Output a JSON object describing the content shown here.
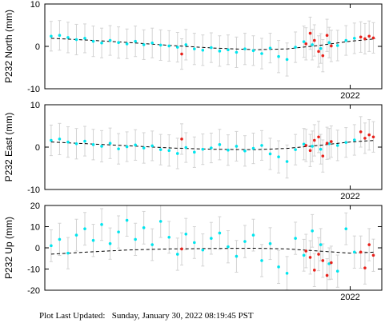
{
  "footer": {
    "label": "Plot Last Updated:",
    "value": "Sunday, January 30, 2022 08:19:45 PST"
  },
  "colors": {
    "final_points": "#00e5ee",
    "rapid_points": "#e8201a",
    "error_bars": "#d3d3d3",
    "trend_line": "#000000",
    "frame": "#000000"
  },
  "chart_data": [
    {
      "type": "scatter",
      "id": "north",
      "ylabel": "P232 North (mm)",
      "xlabel": "",
      "title": "",
      "ylim": [
        -10,
        10
      ],
      "yticks": [
        -10,
        0,
        10
      ],
      "xlim": [
        2020.55,
        2022.15
      ],
      "xticks": [
        {
          "value": 2022.0,
          "label": "2022"
        }
      ],
      "grid": false,
      "series": [
        {
          "kind": "final",
          "x": [
            2020.58,
            2020.62,
            2020.66,
            2020.7,
            2020.74,
            2020.78,
            2020.82,
            2020.86,
            2020.9,
            2020.94,
            2020.98,
            2021.02,
            2021.06,
            2021.1,
            2021.14,
            2021.18,
            2021.22,
            2021.26,
            2021.3,
            2021.34,
            2021.38,
            2021.42,
            2021.46,
            2021.5,
            2021.54,
            2021.58,
            2021.62,
            2021.66,
            2021.7,
            2021.74,
            2021.78,
            2021.82,
            2021.86,
            2021.9,
            2021.94,
            2021.98,
            2022.02
          ],
          "y": [
            2.4,
            2.6,
            2.1,
            1.6,
            1.9,
            1.2,
            0.8,
            1.4,
            0.9,
            0.6,
            1.2,
            0.4,
            0.8,
            0.3,
            0.1,
            -0.2,
            0.4,
            -0.6,
            -0.9,
            -0.3,
            -1.1,
            -0.8,
            -1.4,
            -0.6,
            -1.0,
            -1.7,
            -0.4,
            -2.4,
            -3.1,
            -0.2,
            1.1,
            0.4,
            -0.5,
            0.9,
            0.2,
            1.4,
            1.9
          ],
          "err": [
            3.5,
            3.5,
            3.6,
            3.6,
            3.4,
            3.6,
            3.5,
            3.5,
            3.7,
            3.5,
            3.6,
            3.5,
            3.5,
            3.6,
            3.6,
            3.5,
            3.6,
            3.7,
            3.6,
            3.5,
            3.6,
            3.5,
            3.6,
            3.7,
            3.5,
            3.6,
            3.5,
            3.8,
            3.9,
            3.6,
            3.7,
            3.6,
            3.5,
            3.6,
            3.6,
            3.5,
            3.6
          ]
        },
        {
          "kind": "rapid",
          "x": [
            2021.2,
            2021.79,
            2021.81,
            2021.83,
            2021.85,
            2021.87,
            2021.89,
            2021.91,
            2022.05,
            2022.07,
            2022.09,
            2022.11
          ],
          "y": [
            -1.8,
            0.6,
            3.1,
            1.4,
            -1.2,
            -2.2,
            2.6,
            0.1,
            2.2,
            1.8,
            2.4,
            2.0
          ],
          "err": [
            3.6,
            3.8,
            3.8,
            3.7,
            3.7,
            3.8,
            3.8,
            3.7,
            3.6,
            3.6,
            3.6,
            3.6
          ]
        },
        {
          "kind": "trend",
          "x": [
            2020.58,
            2020.75,
            2020.95,
            2021.15,
            2021.35,
            2021.55,
            2021.7,
            2021.85,
            2022.0,
            2022.12
          ],
          "y": [
            1.9,
            1.5,
            0.9,
            0.2,
            -0.4,
            -0.8,
            -0.6,
            0.2,
            1.2,
            1.8
          ]
        }
      ]
    },
    {
      "type": "scatter",
      "id": "east",
      "ylabel": "P232 East (mm)",
      "xlabel": "",
      "title": "",
      "ylim": [
        -10,
        10
      ],
      "yticks": [
        -10,
        0,
        10
      ],
      "xlim": [
        2020.55,
        2022.15
      ],
      "xticks": [
        {
          "value": 2022.0,
          "label": "2022"
        }
      ],
      "grid": false,
      "series": [
        {
          "kind": "final",
          "x": [
            2020.58,
            2020.62,
            2020.66,
            2020.7,
            2020.74,
            2020.78,
            2020.82,
            2020.86,
            2020.9,
            2020.94,
            2020.98,
            2021.02,
            2021.06,
            2021.1,
            2021.14,
            2021.18,
            2021.22,
            2021.26,
            2021.3,
            2021.34,
            2021.38,
            2021.42,
            2021.46,
            2021.5,
            2021.54,
            2021.58,
            2021.62,
            2021.66,
            2021.7,
            2021.74,
            2021.78,
            2021.82,
            2021.86,
            2021.9,
            2021.94,
            2021.98,
            2022.02
          ],
          "y": [
            1.6,
            1.9,
            1.2,
            0.8,
            1.4,
            0.6,
            0.2,
            0.9,
            -0.4,
            0.1,
            0.5,
            -0.2,
            0.3,
            -0.6,
            -0.8,
            -1.5,
            -0.1,
            -1.2,
            -0.5,
            -0.2,
            0.6,
            -0.7,
            0.2,
            -0.9,
            -0.3,
            0.4,
            -1.6,
            -2.3,
            -3.4,
            -0.6,
            0.7,
            0.2,
            -0.5,
            0.8,
            0.4,
            1.1,
            1.7
          ],
          "err": [
            3.6,
            3.7,
            3.6,
            3.6,
            3.5,
            3.6,
            3.7,
            3.6,
            3.6,
            3.5,
            3.6,
            3.6,
            3.5,
            3.6,
            3.7,
            3.6,
            3.5,
            3.6,
            3.6,
            3.5,
            3.6,
            3.6,
            3.5,
            3.6,
            3.6,
            3.5,
            3.7,
            3.8,
            3.9,
            3.6,
            3.7,
            3.6,
            3.5,
            3.6,
            3.6,
            3.5,
            3.6
          ]
        },
        {
          "kind": "rapid",
          "x": [
            2021.2,
            2021.79,
            2021.81,
            2021.83,
            2021.85,
            2021.87,
            2021.89,
            2021.91,
            2022.05,
            2022.07,
            2022.09,
            2022.11
          ],
          "y": [
            1.9,
            0.4,
            -0.8,
            1.6,
            2.4,
            -2.1,
            0.9,
            1.3,
            3.6,
            2.1,
            2.9,
            2.4
          ],
          "err": [
            3.6,
            3.8,
            3.8,
            3.7,
            3.7,
            3.8,
            3.8,
            3.7,
            3.6,
            3.6,
            3.6,
            3.6
          ]
        },
        {
          "kind": "trend",
          "x": [
            2020.58,
            2020.75,
            2020.95,
            2021.15,
            2021.35,
            2021.55,
            2021.7,
            2021.85,
            2022.0,
            2022.12
          ],
          "y": [
            1.2,
            0.8,
            0.3,
            -0.2,
            -0.5,
            -0.6,
            -0.3,
            0.4,
            1.2,
            1.6
          ]
        }
      ]
    },
    {
      "type": "scatter",
      "id": "up",
      "ylabel": "P232 Up (mm)",
      "xlabel": "",
      "title": "",
      "ylim": [
        -20,
        20
      ],
      "yticks": [
        -20,
        -10,
        0,
        10,
        20
      ],
      "xlim": [
        2020.55,
        2022.15
      ],
      "xticks": [
        {
          "value": 2022.0,
          "label": "2022"
        }
      ],
      "grid": false,
      "series": [
        {
          "kind": "final",
          "x": [
            2020.58,
            2020.62,
            2020.66,
            2020.7,
            2020.74,
            2020.78,
            2020.82,
            2020.86,
            2020.9,
            2020.94,
            2020.98,
            2021.02,
            2021.06,
            2021.1,
            2021.14,
            2021.18,
            2021.22,
            2021.26,
            2021.3,
            2021.34,
            2021.38,
            2021.42,
            2021.46,
            2021.5,
            2021.54,
            2021.58,
            2021.62,
            2021.66,
            2021.7,
            2021.74,
            2021.78,
            2021.82,
            2021.86,
            2021.9,
            2021.94,
            2021.98,
            2022.02
          ],
          "y": [
            1.0,
            4.0,
            -2.5,
            6.0,
            9.0,
            3.5,
            11.0,
            2.0,
            7.5,
            13.0,
            4.0,
            9.5,
            1.5,
            12.5,
            5.0,
            -3.0,
            6.5,
            2.5,
            -1.0,
            4.5,
            7.0,
            0.5,
            -4.0,
            3.0,
            6.0,
            -6.0,
            2.0,
            -9.0,
            -12.0,
            4.5,
            -3.5,
            8.0,
            1.5,
            -7.5,
            -11.0,
            9.0,
            -2.0
          ],
          "err": [
            7.5,
            7.6,
            7.4,
            7.5,
            7.7,
            7.6,
            7.5,
            7.4,
            7.6,
            7.5,
            7.6,
            7.7,
            7.5,
            7.6,
            7.5,
            7.6,
            7.4,
            7.5,
            7.6,
            7.5,
            7.7,
            7.6,
            7.5,
            7.6,
            7.5,
            7.6,
            7.5,
            7.8,
            7.9,
            7.6,
            7.5,
            7.7,
            7.6,
            7.5,
            7.6,
            7.5,
            7.6
          ]
        },
        {
          "kind": "rapid",
          "x": [
            2021.2,
            2021.79,
            2021.81,
            2021.83,
            2021.85,
            2021.87,
            2021.89,
            2021.91,
            2022.05,
            2022.07,
            2022.09,
            2022.11
          ],
          "y": [
            -0.5,
            -1.5,
            -4.5,
            -10.5,
            -3.0,
            -6.0,
            -13.0,
            -7.0,
            -2.0,
            -9.5,
            1.5,
            -3.5
          ],
          "err": [
            7.6,
            7.9,
            7.9,
            7.8,
            7.8,
            7.9,
            7.9,
            7.8,
            7.6,
            7.6,
            7.6,
            7.6
          ]
        },
        {
          "kind": "trend",
          "x": [
            2020.58,
            2020.75,
            2020.95,
            2021.15,
            2021.35,
            2021.55,
            2021.7,
            2021.85,
            2022.0,
            2022.12
          ],
          "y": [
            -3.0,
            -2.0,
            -1.0,
            -0.5,
            -0.3,
            -0.2,
            -0.5,
            -1.5,
            -2.5,
            -2.0
          ]
        }
      ]
    }
  ]
}
